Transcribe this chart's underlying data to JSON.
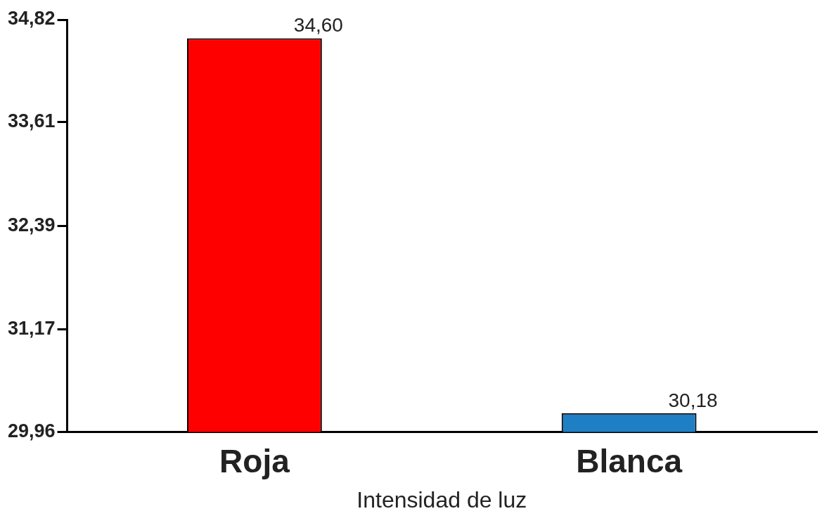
{
  "chart_data": {
    "type": "bar",
    "xlabel": "Intensidad de luz",
    "categories": [
      "Roja",
      "Blanca"
    ],
    "values": [
      34.6,
      30.18
    ],
    "colors": [
      "#ff0000",
      "#1f7fc4"
    ],
    "value_labels": [
      "34,60",
      "30,18"
    ],
    "ylim": [
      29.96,
      34.82
    ],
    "yticks": [
      {
        "value": 29.96,
        "label": "29,96"
      },
      {
        "value": 31.17,
        "label": "31,17"
      },
      {
        "value": 32.39,
        "label": "32,39"
      },
      {
        "value": 33.61,
        "label": "33,61"
      },
      {
        "value": 34.82,
        "label": "34,82"
      }
    ],
    "grid": false,
    "legend": false
  }
}
